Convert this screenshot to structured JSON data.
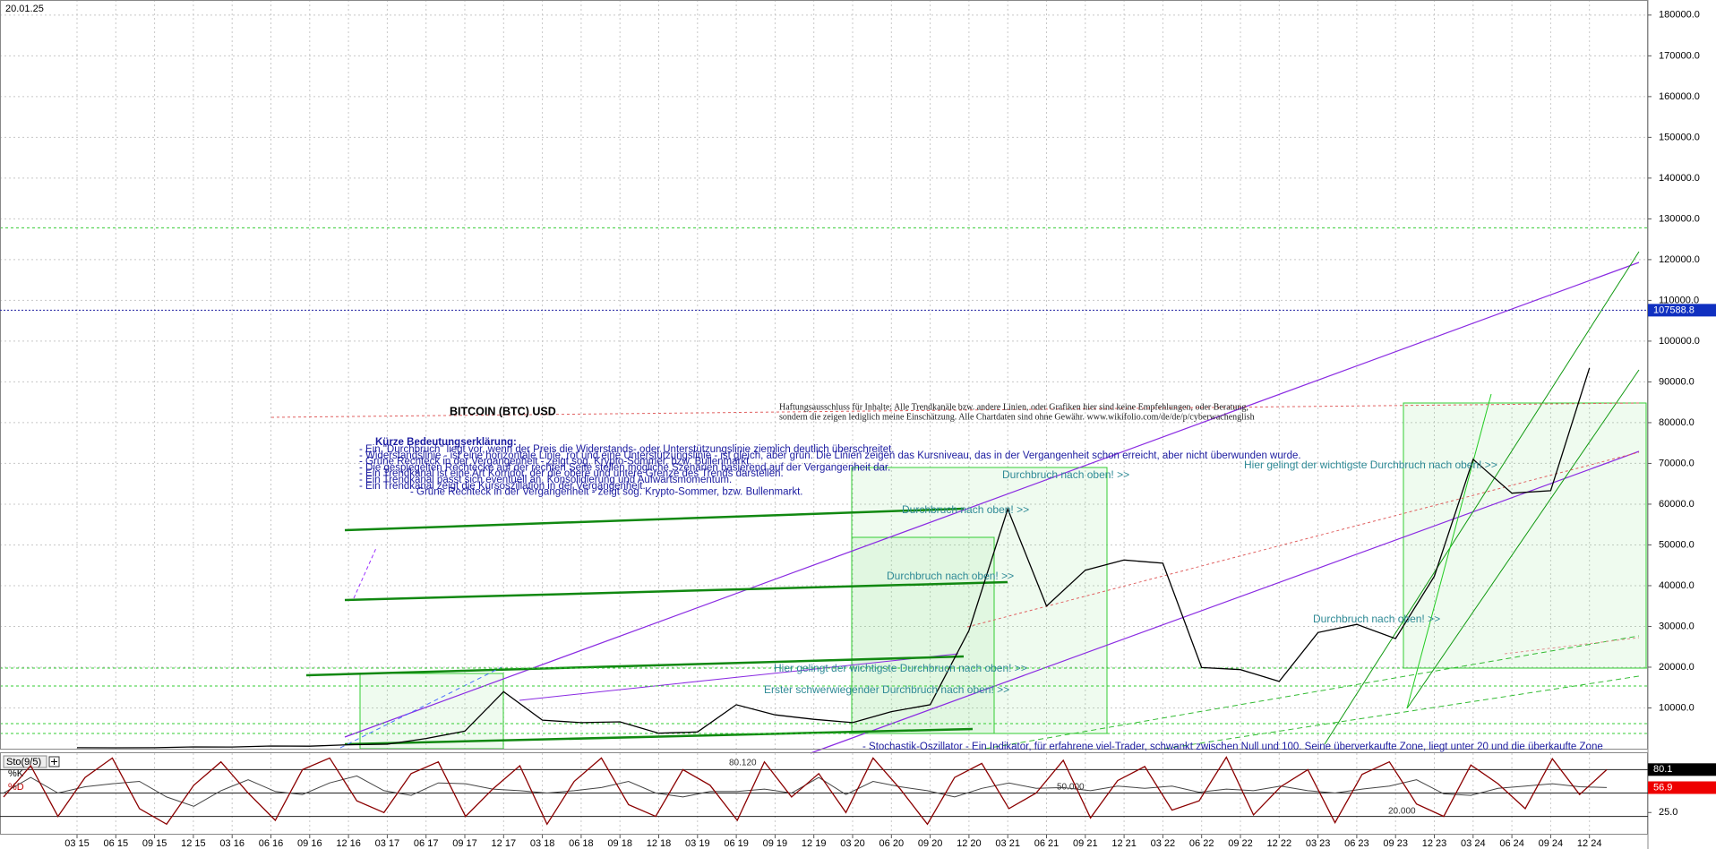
{
  "chart_data": {
    "type": "line",
    "date": "20.01.25",
    "title": "BITCOIN (BTC) USD",
    "legend_heading": "Kürze Bedeutungserklärung:",
    "explanations": [
      "- Ein \"Durchbruch\" liegt vor, wenn der Preis die Widerstands- oder Unterstützungslinie ziemlich deutlich überschreitet.",
      "- Widerstandslinie - ist eine horizontale Linie, rot und eine Unterstützungslinie - ist gleich, aber grün. Die Linien zeigen das Kursniveau, das in der Vergangenheit schon erreicht, aber nicht überwunden wurde.",
      "- Grüne Rechteck in der Vergangenheit - zeigt sog. Krypto-Sommer, bzw. Bullenmarkt.",
      "- Die gespiegelten Rechtecke auf der rechten Seite stellen mögliche Szenarien basierend auf der Vergangenheit dar.",
      "- Ein Trendkanal ist eine Art Korridor, der die obere und untere Grenze des Trends darstellen.",
      "- Ein Trendkanal passt sich eventuell an, Konsolidierung und Aufwärtsmomentum.",
      "- Ein Trendkanal zeigt die Kursoszillation in der Vergangenheit.",
      "- Grüne Rechteck in der Vergangenheit - zeigt sog. Krypto-Sommer, bzw. Bullenmarkt."
    ],
    "disclaimer": [
      "Haftungsausschluss für Inhalte: Alle Trendkanäle bzw. andere Linien, oder Grafiken hier sind keine Empfehlungen, oder Beratung,",
      "sondern die zeigen lediglich meine Einschätzung. Alle Chartdaten sind ohne Gewähr. www.wikifolio.com/de/de/p/cyberwachenglish"
    ],
    "annotations": [
      "Durchbruch nach oben! >>",
      "Durchbruch nach oben! >>",
      "Durchbruch nach oben! >>",
      "Durchbruch nach oben! >>",
      "Hier gelingt der wichtigste Durchbruch nach oben! >>",
      "Hier gelingt der wichtigste Durchbruch nach oben! >>",
      "Erster schwerwiegender Durchbruch nach oben! >>",
      "- Stochastik-Oszillator - Ein Indikator, für erfahrene viel-Trader, schwankt zwischen Null und 100. Seine überverkaufte Zone, liegt unter 20 und die überkaufte Zone"
    ],
    "categories": [
      "03 15",
      "06 15",
      "09 15",
      "12 15",
      "03 16",
      "06 16",
      "09 16",
      "12 16",
      "03 17",
      "06 17",
      "09 17",
      "12 17",
      "03 18",
      "06 18",
      "09 18",
      "12 18",
      "03 19",
      "06 19",
      "09 19",
      "12 19",
      "03 20",
      "06 20",
      "09 20",
      "12 20",
      "03 21",
      "06 21",
      "09 21",
      "12 21",
      "03 22",
      "06 22",
      "09 22",
      "12 22",
      "03 23",
      "06 23",
      "09 23",
      "12 23",
      "03 24",
      "06 24",
      "09 24",
      "12 24"
    ],
    "series": [
      {
        "name": "BTC",
        "color": "#000000",
        "values": [
          250,
          230,
          240,
          430,
          420,
          670,
          610,
          960,
          1100,
          2500,
          4300,
          14000,
          7000,
          6400,
          6600,
          3800,
          4100,
          10800,
          8300,
          7200,
          6400,
          9100,
          10800,
          29000,
          58800,
          35000,
          43800,
          46300,
          45500,
          19900,
          19400,
          16500,
          28500,
          30500,
          27000,
          42300,
          71000,
          62700,
          63300,
          93400
        ]
      }
    ],
    "last_price": 107588.8,
    "resistance_level": 127800,
    "ylim": [
      0,
      183700
    ],
    "yticks": [
      {
        "value": 10000,
        "label": "10000.0"
      },
      {
        "value": 20000,
        "label": "20000.0"
      },
      {
        "value": 30000,
        "label": "30000.0"
      },
      {
        "value": 40000,
        "label": "40000.0"
      },
      {
        "value": 50000,
        "label": "50000.0"
      },
      {
        "value": 60000,
        "label": "60000.0"
      },
      {
        "value": 70000,
        "label": "70000.0"
      },
      {
        "value": 80000,
        "label": "80000.0"
      },
      {
        "value": 90000,
        "label": "90000.0"
      },
      {
        "value": 100000,
        "label": "100000.0"
      },
      {
        "value": 110000,
        "label": "110000.0"
      },
      {
        "value": 120000,
        "label": "120000.0"
      },
      {
        "value": 130000,
        "label": "130000.0"
      },
      {
        "value": 140000,
        "label": "140000.0"
      },
      {
        "value": 150000,
        "label": "150000.0"
      },
      {
        "value": 160000,
        "label": "160000.0"
      },
      {
        "value": 170000,
        "label": "170000.0"
      },
      {
        "value": 180000,
        "label": "180000.0"
      }
    ],
    "grid": true,
    "stochastic": {
      "name": "Sto(9/5)",
      "k_label": "%K",
      "d_label": "%D",
      "k_color": "#8b0000",
      "d_color": "#444444",
      "ylim": [
        0,
        100
      ],
      "yticks": [
        {
          "value": 25,
          "label": "25.0"
        }
      ],
      "levels": [
        80,
        50,
        20
      ],
      "level_texts": [
        "80.120",
        "50.000",
        "20.000"
      ],
      "k_last": 80.1,
      "d_last": 56.9,
      "k": [
        45,
        85,
        20,
        70,
        95,
        30,
        10,
        60,
        90,
        50,
        15,
        80,
        95,
        40,
        25,
        75,
        90,
        20,
        55,
        85,
        10,
        65,
        95,
        35,
        20,
        80,
        60,
        15,
        90,
        45,
        75,
        25,
        95,
        55,
        10,
        70,
        88,
        30,
        50,
        92,
        18,
        66,
        84,
        28,
        40,
        96,
        22,
        58,
        80,
        12,
        74,
        90,
        36,
        20,
        86,
        62,
        30,
        94,
        48,
        80
      ],
      "d": [
        50,
        70,
        50,
        58,
        62,
        65,
        45,
        33,
        53,
        67,
        52,
        48,
        63,
        72,
        53,
        47,
        63,
        62,
        55,
        53,
        50,
        53,
        57,
        65,
        50,
        45,
        52,
        52,
        55,
        50,
        70,
        48,
        65,
        58,
        53,
        45,
        56,
        63,
        56,
        57,
        53,
        59,
        56,
        59,
        51,
        55,
        53,
        59,
        53,
        50,
        55,
        59,
        67,
        49,
        47,
        56,
        59,
        62,
        58,
        57
      ]
    }
  }
}
